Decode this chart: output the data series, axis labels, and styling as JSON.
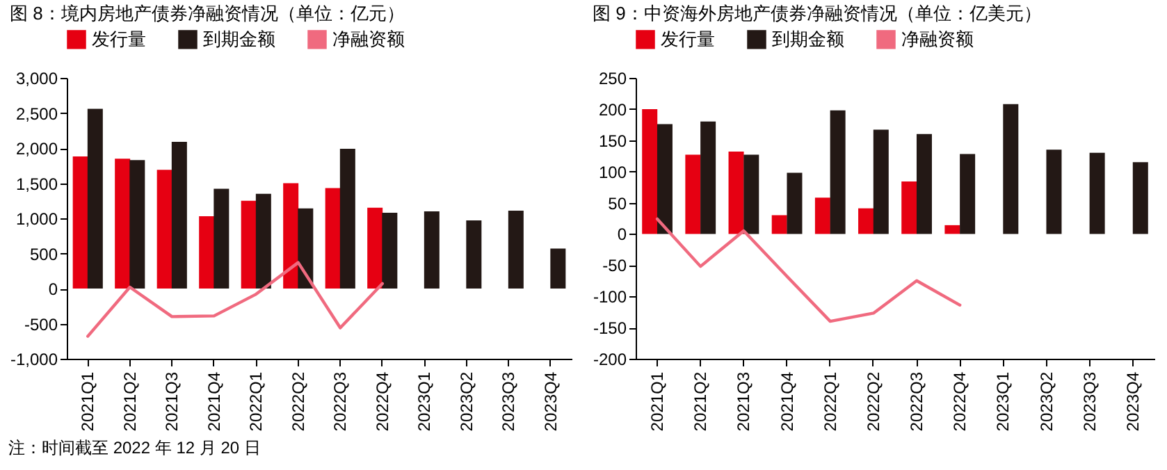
{
  "chart_data": [
    {
      "type": "bar",
      "title": "图 8：境内房地产债券净融资情况（单位：亿元）",
      "categories": [
        "2021Q1",
        "2021Q2",
        "2021Q3",
        "2021Q4",
        "2022Q1",
        "2022Q2",
        "2022Q3",
        "2022Q4",
        "2023Q1",
        "2023Q2",
        "2023Q3",
        "2023Q4"
      ],
      "series": [
        {
          "name": "发行量",
          "color": "#e60012",
          "values": [
            1880,
            1850,
            1690,
            1030,
            1250,
            1500,
            1430,
            1150,
            null,
            null,
            null,
            null
          ]
        },
        {
          "name": "到期金额",
          "color": "#231815",
          "values": [
            2560,
            1830,
            2090,
            1420,
            1350,
            1140,
            1990,
            1080,
            1100,
            970,
            1110,
            570
          ]
        },
        {
          "name": "净融资额",
          "type": "line",
          "color": "#f06a7f",
          "values": [
            -680,
            20,
            -400,
            -390,
            -80,
            370,
            -560,
            70,
            null,
            null,
            null,
            null
          ]
        }
      ],
      "ylim": [
        -1000,
        3000
      ],
      "yticks": [
        {
          "value": -1000,
          "label": "-1,000"
        },
        -500,
        0,
        500,
        {
          "value": 1000,
          "label": "1,000"
        },
        {
          "value": 1500,
          "label": "1,500"
        },
        {
          "value": 2000,
          "label": "2,000"
        },
        {
          "value": 2500,
          "label": "2,500"
        },
        {
          "value": 3000,
          "label": "3,000"
        }
      ],
      "legend": "top",
      "annotations": [
        "注：时间截至 2022 年 12 月 20 日"
      ]
    },
    {
      "type": "bar",
      "title": "图 9：中资海外房地产债券净融资情况（单位：亿美元）",
      "categories": [
        "2021Q1",
        "2021Q2",
        "2021Q3",
        "2021Q4",
        "2022Q1",
        "2022Q2",
        "2022Q3",
        "2022Q4",
        "2023Q1",
        "2023Q2",
        "2023Q3",
        "2023Q4"
      ],
      "series": [
        {
          "name": "发行量",
          "color": "#e60012",
          "values": [
            200,
            127,
            132,
            30,
            58,
            41,
            84,
            14,
            null,
            null,
            null,
            null
          ]
        },
        {
          "name": "到期金额",
          "color": "#231815",
          "values": [
            176,
            180,
            127,
            98,
            198,
            167,
            160,
            128,
            208,
            135,
            130,
            115
          ]
        },
        {
          "name": "净融资额",
          "type": "line",
          "color": "#f06a7f",
          "values": [
            24,
            -52,
            5,
            -68,
            -140,
            -127,
            -75,
            -114,
            null,
            null,
            null,
            null
          ]
        }
      ],
      "ylim": [
        -200,
        250
      ],
      "yticks": [
        -200,
        -150,
        -100,
        -50,
        0,
        50,
        100,
        150,
        200,
        250
      ],
      "legend": "top"
    }
  ]
}
